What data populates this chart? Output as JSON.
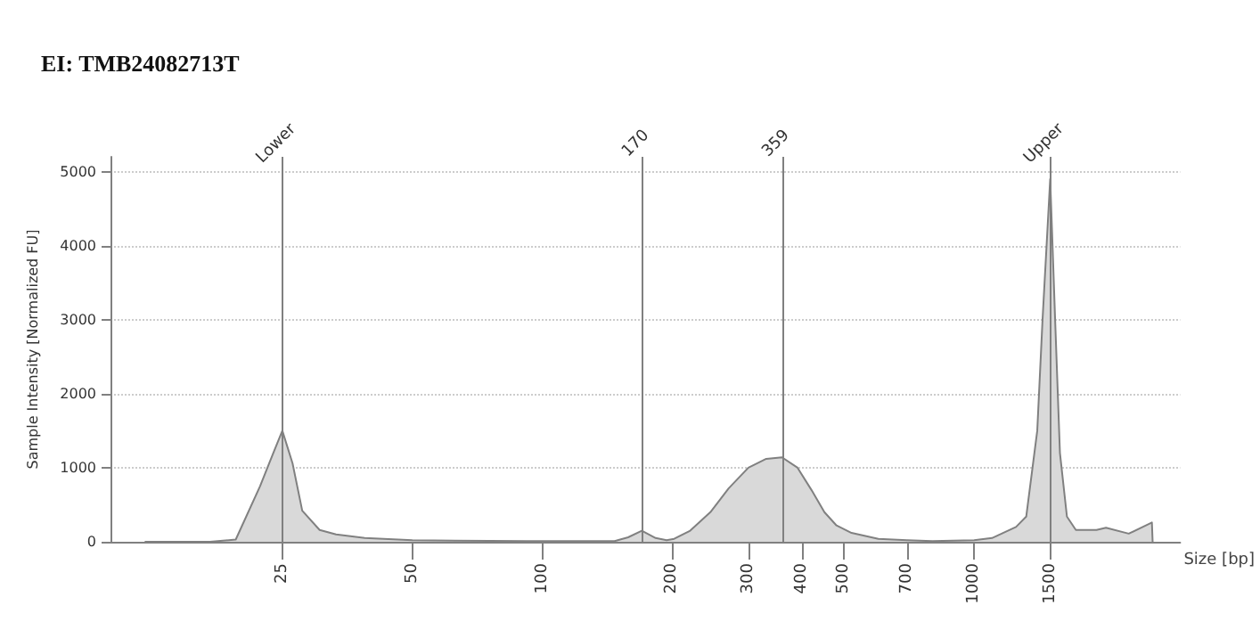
{
  "chart_data": {
    "type": "area",
    "title": "EI: TMB24082713T",
    "xlabel": "Size [bp]",
    "ylabel": "Sample Intensity [Normalized FU]",
    "x": [
      12,
      17,
      19.5,
      22.2,
      23.6,
      25,
      26.4,
      27.8,
      30.5,
      33.3,
      38.8,
      50,
      92,
      147,
      158,
      170,
      183,
      194,
      202,
      220,
      245,
      270,
      300,
      330,
      359,
      390,
      420,
      450,
      480,
      520,
      600,
      700,
      800,
      1000,
      1100,
      1250,
      1320,
      1400,
      1440,
      1500,
      1540,
      1580,
      1640,
      1720,
      1920,
      2020,
      2280,
      2580,
      2590
    ],
    "series": [
      {
        "color": "#d9d9d9",
        "values": [
          0,
          0,
          30,
          750,
          1140,
          1500,
          1060,
          420,
          160,
          100,
          50,
          20,
          10,
          10,
          60,
          150,
          50,
          20,
          40,
          150,
          400,
          720,
          1000,
          1120,
          1140,
          1000,
          700,
          400,
          220,
          120,
          40,
          20,
          10,
          20,
          50,
          200,
          340,
          1500,
          3000,
          4900,
          3000,
          1200,
          340,
          160,
          160,
          190,
          110,
          260,
          0
        ]
      }
    ],
    "xlim": [
      10,
      3000
    ],
    "xticks": [
      25,
      50,
      100,
      200,
      300,
      400,
      500,
      700,
      1000,
      1500
    ],
    "ylim": [
      0,
      5200
    ],
    "yticks": [
      0,
      1000,
      2000,
      3000,
      4000,
      5000
    ],
    "log": "x",
    "ref_lines": [
      {
        "axis": "x",
        "value": 25,
        "label": "Lower",
        "color": "#808080"
      },
      {
        "axis": "x",
        "value": 170,
        "label": "170",
        "color": "#808080"
      },
      {
        "axis": "x",
        "value": 359,
        "label": "359",
        "color": "#808080"
      },
      {
        "axis": "x",
        "value": 1500,
        "label": "Upper",
        "color": "#808080"
      }
    ],
    "grid": "y",
    "marker": "none",
    "line_style": "solid"
  }
}
